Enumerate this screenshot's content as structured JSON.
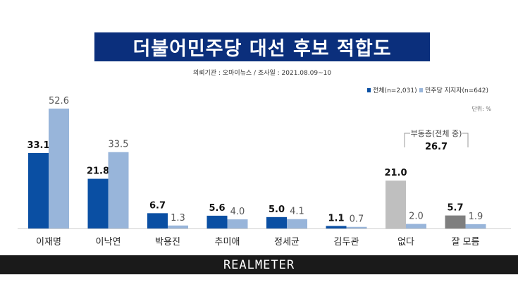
{
  "header": {
    "title": "더불어민주당 대선 후보 적합도",
    "subtitle": "의뢰기관 : 오마이뉴스  /  조사일 : 2021.08.09~10"
  },
  "footer": {
    "brand": "REALMETER"
  },
  "chart_data": {
    "type": "bar",
    "title": "더불어민주당 대선 후보 적합도",
    "unit_label": "단위: %",
    "categories": [
      "이재명",
      "이낙연",
      "박용진",
      "추미애",
      "정세균",
      "김두관",
      "없다",
      "잘 모름"
    ],
    "series": [
      {
        "name": "전체(n=2,031)",
        "color": "#0a4fa3",
        "values": [
          33.1,
          21.8,
          6.7,
          5.6,
          5.0,
          1.1,
          21.0,
          5.7
        ]
      },
      {
        "name": "민주당 지지자(n=642)",
        "color": "#98b5da",
        "values": [
          52.6,
          33.5,
          1.3,
          4.0,
          4.1,
          0.7,
          2.0,
          1.9
        ]
      }
    ],
    "special_colors": {
      "none_total": "#bfbfbf",
      "unknown_total": "#7f7f7f"
    },
    "annotation": {
      "label": "부동층(전체 중)",
      "value": "26.7"
    },
    "ylim": [
      0,
      56
    ],
    "grid": false,
    "legend_position": "top-right"
  }
}
